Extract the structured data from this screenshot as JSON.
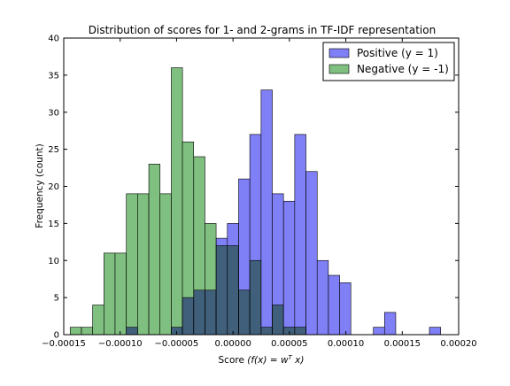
{
  "chart_data": {
    "type": "histogram",
    "title": "Distribution of scores for 1- and 2-grams in TF-IDF representation",
    "xlabel_prefix": "Score ",
    "xlabel_math": "(f(x) = w",
    "xlabel_sup": "T",
    "xlabel_math_end": " x)",
    "ylabel": "Frequency (count)",
    "xlim": [
      -0.00015,
      0.0002
    ],
    "ylim": [
      0,
      40
    ],
    "x_ticks": [
      -0.00015,
      -0.0001,
      -5e-05,
      0.0,
      5e-05,
      0.0001,
      0.00015,
      0.0002
    ],
    "x_tick_labels": [
      "−0.00015",
      "−0.00010",
      "−0.00005",
      "0.00000",
      "0.00005",
      "0.00010",
      "0.00015",
      "0.00020"
    ],
    "y_ticks": [
      0,
      5,
      10,
      15,
      20,
      25,
      30,
      35,
      40
    ],
    "y_tick_labels": [
      "0",
      "5",
      "10",
      "15",
      "20",
      "25",
      "30",
      "35",
      "40"
    ],
    "legend_position": "top-right",
    "bin_width": 9.94e-06,
    "series": [
      {
        "name": "Positive (y = 1)",
        "color": "#7f7ff6",
        "bins": [
          {
            "x0": -9.45e-05,
            "count": 1
          },
          {
            "x0": -5.47e-05,
            "count": 1
          },
          {
            "x0": -4.48e-05,
            "count": 5
          },
          {
            "x0": -3.48e-05,
            "count": 6
          },
          {
            "x0": -2.49e-05,
            "count": 6
          },
          {
            "x0": -1.49e-05,
            "count": 13
          },
          {
            "x0": -5e-06,
            "count": 15
          },
          {
            "x0": 5e-06,
            "count": 21
          },
          {
            "x0": 1.49e-05,
            "count": 27
          },
          {
            "x0": 2.49e-05,
            "count": 33
          },
          {
            "x0": 3.48e-05,
            "count": 19
          },
          {
            "x0": 4.48e-05,
            "count": 18
          },
          {
            "x0": 5.47e-05,
            "count": 27
          },
          {
            "x0": 6.47e-05,
            "count": 22
          },
          {
            "x0": 7.46e-05,
            "count": 10
          },
          {
            "x0": 8.46e-05,
            "count": 8
          },
          {
            "x0": 9.45e-05,
            "count": 7
          },
          {
            "x0": 0.0001244,
            "count": 1
          },
          {
            "x0": 0.0001343,
            "count": 3
          },
          {
            "x0": 0.0001741,
            "count": 1
          }
        ]
      },
      {
        "name": "Negative (y = -1)",
        "color": "#7fbf7f",
        "bins": [
          {
            "x0": -0.0001443,
            "count": 1
          },
          {
            "x0": -0.0001343,
            "count": 1
          },
          {
            "x0": -0.0001244,
            "count": 4
          },
          {
            "x0": -0.0001144,
            "count": 11
          },
          {
            "x0": -0.0001045,
            "count": 11
          },
          {
            "x0": -9.45e-05,
            "count": 19
          },
          {
            "x0": -8.46e-05,
            "count": 19
          },
          {
            "x0": -7.46e-05,
            "count": 23
          },
          {
            "x0": -6.47e-05,
            "count": 19
          },
          {
            "x0": -5.47e-05,
            "count": 36
          },
          {
            "x0": -4.48e-05,
            "count": 26
          },
          {
            "x0": -3.48e-05,
            "count": 24
          },
          {
            "x0": -2.49e-05,
            "count": 15
          },
          {
            "x0": -1.49e-05,
            "count": 12
          },
          {
            "x0": -5e-06,
            "count": 12
          },
          {
            "x0": 5e-06,
            "count": 6
          },
          {
            "x0": 1.49e-05,
            "count": 10
          },
          {
            "x0": 2.49e-05,
            "count": 1
          },
          {
            "x0": 3.48e-05,
            "count": 4
          },
          {
            "x0": 4.48e-05,
            "count": 1
          },
          {
            "x0": 5.47e-05,
            "count": 1
          }
        ]
      }
    ]
  }
}
